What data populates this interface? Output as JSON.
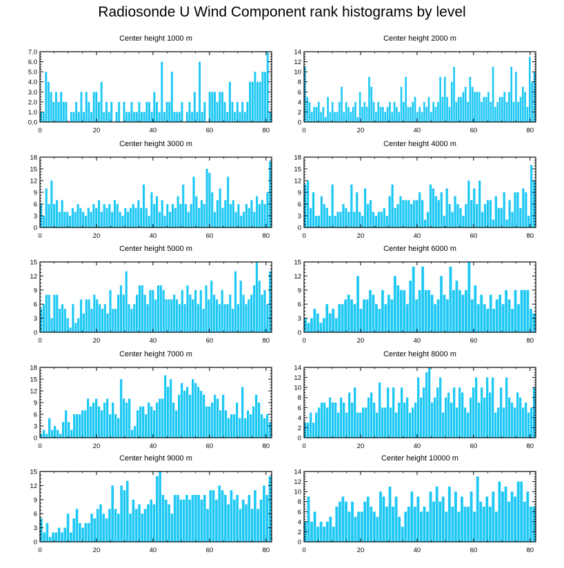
{
  "title": "Radiosonde U Wind Component rank histograms by level",
  "bar_color": "#1ec8f5",
  "chart_data": [
    {
      "type": "bar",
      "title": "Center height 1000 m",
      "ylim": [
        0,
        7
      ],
      "yticks": [
        "0.0",
        "1.0",
        "2.0",
        "3.0",
        "4.0",
        "5.0",
        "6.0",
        "7.0"
      ],
      "xlim": [
        0,
        82
      ],
      "xticks": [
        0,
        20,
        40,
        60,
        80
      ],
      "values": [
        1,
        1,
        5,
        4,
        3,
        2,
        3,
        2,
        3,
        2,
        2,
        0,
        1,
        1,
        2,
        1,
        3,
        1,
        3,
        2,
        1,
        3,
        3,
        2,
        4,
        1,
        2,
        1,
        2,
        0,
        1,
        2,
        0,
        2,
        1,
        1,
        2,
        1,
        1,
        2,
        1,
        1,
        2,
        2,
        1,
        3,
        2,
        1,
        6,
        1,
        2,
        2,
        5,
        1,
        1,
        1,
        2,
        0,
        1,
        2,
        1,
        3,
        1,
        6,
        1,
        2,
        0,
        3,
        3,
        3,
        2,
        3,
        3,
        2,
        1,
        4,
        2,
        1,
        2,
        1,
        2,
        1,
        2,
        4,
        4,
        5,
        4,
        4,
        5,
        5,
        7,
        1
      ]
    },
    {
      "type": "bar",
      "title": "Center height 2000 m",
      "ylim": [
        0,
        14
      ],
      "yticks": [
        "0",
        "2",
        "4",
        "6",
        "8",
        "10",
        "12",
        "14"
      ],
      "xlim": [
        0,
        82
      ],
      "xticks": [
        0,
        20,
        40,
        60,
        80
      ],
      "values": [
        11,
        5,
        4,
        2,
        3,
        3,
        4,
        2,
        3,
        1,
        5,
        2,
        4,
        2,
        2,
        4,
        7,
        2,
        4,
        3,
        2,
        3,
        4,
        1,
        6,
        3,
        4,
        3,
        9,
        7,
        4,
        2,
        4,
        3,
        3,
        2,
        3,
        4,
        2,
        4,
        3,
        2,
        7,
        4,
        9,
        3,
        3,
        4,
        5,
        2,
        3,
        2,
        4,
        3,
        5,
        2,
        4,
        3,
        4,
        9,
        5,
        9,
        5,
        3,
        8,
        11,
        4,
        5,
        5,
        6,
        7,
        4,
        9,
        7,
        6,
        6,
        6,
        4,
        5,
        5,
        6,
        4,
        11,
        3,
        4,
        5,
        5,
        6,
        4,
        6,
        11,
        4,
        10,
        4,
        5,
        7,
        6,
        3,
        13,
        8,
        10
      ]
    },
    {
      "type": "bar",
      "title": "Center height 3000 m",
      "ylim": [
        0,
        18
      ],
      "yticks": [
        "0",
        "3",
        "6",
        "9",
        "12",
        "15",
        "18"
      ],
      "xlim": [
        0,
        82
      ],
      "xticks": [
        0,
        20,
        40,
        60,
        80
      ],
      "values": [
        6,
        3,
        10,
        6,
        12,
        6,
        7,
        4,
        7,
        4,
        4,
        3,
        5,
        4,
        6,
        5,
        4,
        3,
        5,
        4,
        6,
        5,
        7,
        4,
        6,
        5,
        6,
        4,
        7,
        6,
        4,
        3,
        5,
        4,
        5,
        6,
        5,
        7,
        5,
        11,
        5,
        3,
        9,
        6,
        8,
        4,
        7,
        3,
        6,
        4,
        6,
        5,
        8,
        6,
        11,
        6,
        4,
        6,
        13,
        8,
        5,
        7,
        6,
        15,
        14,
        9,
        4,
        7,
        10,
        5,
        7,
        13,
        6,
        7,
        4,
        6,
        3,
        4,
        6,
        5,
        7,
        4,
        8,
        6,
        7,
        6,
        9,
        17
      ]
    },
    {
      "type": "bar",
      "title": "Center height 4000 m",
      "ylim": [
        0,
        18
      ],
      "yticks": [
        "0",
        "3",
        "6",
        "9",
        "12",
        "15",
        "18"
      ],
      "xlim": [
        0,
        82
      ],
      "xticks": [
        0,
        20,
        40,
        60,
        80
      ],
      "values": [
        11,
        12,
        5,
        9,
        3,
        3,
        8,
        6,
        5,
        3,
        11,
        3,
        4,
        4,
        6,
        5,
        4,
        11,
        4,
        9,
        4,
        3,
        10,
        6,
        7,
        4,
        3,
        4,
        4,
        5,
        3,
        8,
        11,
        5,
        6,
        8,
        7,
        7,
        7,
        6,
        7,
        7,
        9,
        7,
        2,
        4,
        11,
        10,
        8,
        7,
        9,
        3,
        10,
        6,
        4,
        8,
        6,
        5,
        3,
        6,
        12,
        7,
        10,
        6,
        12,
        4,
        6,
        7,
        7,
        2,
        8,
        5,
        5,
        9,
        2,
        7,
        4,
        9,
        9,
        5,
        10,
        9,
        3,
        16,
        12
      ]
    },
    {
      "type": "bar",
      "title": "Center height 5000 m",
      "ylim": [
        0,
        15
      ],
      "yticks": [
        "0",
        "3",
        "6",
        "9",
        "12",
        "15"
      ],
      "xlim": [
        0,
        82
      ],
      "xticks": [
        0,
        20,
        40,
        60,
        80
      ],
      "values": [
        5,
        6,
        8,
        8,
        3,
        8,
        8,
        5,
        6,
        5,
        3,
        1,
        6,
        2,
        3,
        7,
        4,
        7,
        7,
        5,
        8,
        7,
        6,
        5,
        6,
        4,
        9,
        5,
        5,
        8,
        10,
        8,
        13,
        6,
        5,
        6,
        8,
        10,
        10,
        8,
        6,
        9,
        9,
        7,
        10,
        10,
        9,
        7,
        7,
        7,
        8,
        7,
        6,
        9,
        6,
        10,
        8,
        7,
        9,
        6,
        9,
        5,
        10,
        7,
        11,
        8,
        7,
        6,
        9,
        6,
        6,
        8,
        5,
        13,
        6,
        11,
        8,
        6,
        7,
        8,
        10,
        15,
        11,
        8,
        9,
        6,
        13
      ]
    },
    {
      "type": "bar",
      "title": "Center height 6000 m",
      "ylim": [
        0,
        15
      ],
      "yticks": [
        "0",
        "3",
        "6",
        "9",
        "12",
        "15"
      ],
      "xlim": [
        0,
        82
      ],
      "xticks": [
        0,
        20,
        40,
        60,
        80
      ],
      "values": [
        3,
        2,
        3,
        5,
        4,
        2,
        3,
        6,
        4,
        5,
        3,
        6,
        6,
        7,
        8,
        7,
        6,
        12,
        5,
        7,
        7,
        9,
        8,
        6,
        5,
        9,
        6,
        8,
        7,
        12,
        10,
        9,
        9,
        6,
        11,
        14,
        7,
        9,
        14,
        9,
        9,
        8,
        6,
        7,
        12,
        8,
        7,
        14,
        9,
        11,
        9,
        8,
        9,
        15,
        7,
        10,
        6,
        8,
        6,
        5,
        8,
        5,
        7,
        8,
        6,
        9,
        7,
        5,
        9,
        6,
        9,
        9,
        9,
        5,
        4
      ]
    },
    {
      "type": "bar",
      "title": "Center height 7000 m",
      "ylim": [
        0,
        18
      ],
      "yticks": [
        "0",
        "3",
        "6",
        "9",
        "12",
        "15",
        "18"
      ],
      "xlim": [
        0,
        82
      ],
      "xticks": [
        0,
        20,
        40,
        60,
        80
      ],
      "values": [
        1,
        2,
        1,
        5,
        2,
        3,
        2,
        1,
        4,
        7,
        4,
        2,
        6,
        6,
        6,
        7,
        7,
        10,
        8,
        9,
        10,
        8,
        7,
        9,
        10,
        6,
        9,
        6,
        5,
        15,
        10,
        9,
        10,
        2,
        3,
        7,
        8,
        8,
        6,
        9,
        8,
        7,
        9,
        10,
        10,
        16,
        13,
        15,
        9,
        7,
        11,
        14,
        12,
        13,
        11,
        15,
        14,
        13,
        12,
        11,
        8,
        8,
        9,
        11,
        10,
        7,
        11,
        7,
        5,
        6,
        6,
        9,
        5,
        13,
        5,
        7,
        6,
        8,
        11,
        9,
        6,
        5,
        6,
        4
      ]
    },
    {
      "type": "bar",
      "title": "Center height 8000 m",
      "ylim": [
        0,
        14
      ],
      "yticks": [
        "0",
        "2",
        "4",
        "6",
        "8",
        "10",
        "12",
        "14"
      ],
      "xlim": [
        0,
        82
      ],
      "xticks": [
        0,
        20,
        40,
        60,
        80
      ],
      "values": [
        3,
        3,
        5,
        3,
        5,
        6,
        7,
        7,
        6,
        8,
        7,
        7,
        5,
        8,
        7,
        5,
        9,
        7,
        10,
        5,
        5,
        6,
        6,
        8,
        9,
        7,
        5,
        11,
        6,
        6,
        10,
        6,
        10,
        5,
        7,
        10,
        7,
        8,
        5,
        6,
        7,
        12,
        8,
        10,
        13,
        14,
        7,
        8,
        10,
        12,
        5,
        8,
        9,
        7,
        10,
        6,
        10,
        9,
        6,
        5,
        8,
        10,
        12,
        7,
        10,
        8,
        12,
        9,
        12,
        5,
        6,
        10,
        6,
        12,
        8,
        7,
        6,
        9,
        8,
        6,
        7,
        5,
        6,
        10
      ]
    },
    {
      "type": "bar",
      "title": "Center height 9000 m",
      "ylim": [
        0,
        15
      ],
      "yticks": [
        "0",
        "3",
        "6",
        "9",
        "12",
        "15"
      ],
      "xlim": [
        0,
        82
      ],
      "xticks": [
        0,
        20,
        40,
        60,
        80
      ],
      "values": [
        5,
        2,
        4,
        1,
        2,
        2,
        3,
        2,
        3,
        6,
        2,
        5,
        7,
        4,
        3,
        4,
        4,
        6,
        5,
        7,
        8,
        6,
        5,
        7,
        12,
        7,
        6,
        12,
        11,
        13,
        6,
        9,
        7,
        8,
        6,
        7,
        8,
        9,
        8,
        14,
        15,
        10,
        9,
        8,
        6,
        10,
        10,
        9,
        9,
        10,
        9,
        10,
        10,
        10,
        9,
        10,
        7,
        11,
        11,
        9,
        12,
        11,
        10,
        8,
        11,
        9,
        10,
        7,
        9,
        8,
        10,
        7,
        11,
        7,
        9,
        12,
        10,
        14
      ]
    },
    {
      "type": "bar",
      "title": "Center height 10000 m",
      "ylim": [
        0,
        14
      ],
      "yticks": [
        "0",
        "2",
        "4",
        "6",
        "8",
        "10",
        "12",
        "14"
      ],
      "xlim": [
        0,
        82
      ],
      "xticks": [
        0,
        20,
        40,
        60,
        80
      ],
      "values": [
        4,
        9,
        4,
        6,
        3,
        4,
        3,
        4,
        5,
        3,
        7,
        8,
        9,
        8,
        6,
        8,
        5,
        6,
        6,
        8,
        9,
        7,
        6,
        5,
        10,
        9,
        7,
        11,
        7,
        9,
        5,
        3,
        6,
        7,
        10,
        7,
        9,
        6,
        7,
        6,
        10,
        8,
        11,
        8,
        9,
        6,
        11,
        7,
        10,
        6,
        9,
        7,
        7,
        10,
        6,
        13,
        8,
        7,
        9,
        7,
        10,
        6,
        12,
        10,
        11,
        8,
        10,
        9,
        12,
        12,
        8,
        10,
        7,
        7
      ]
    }
  ]
}
